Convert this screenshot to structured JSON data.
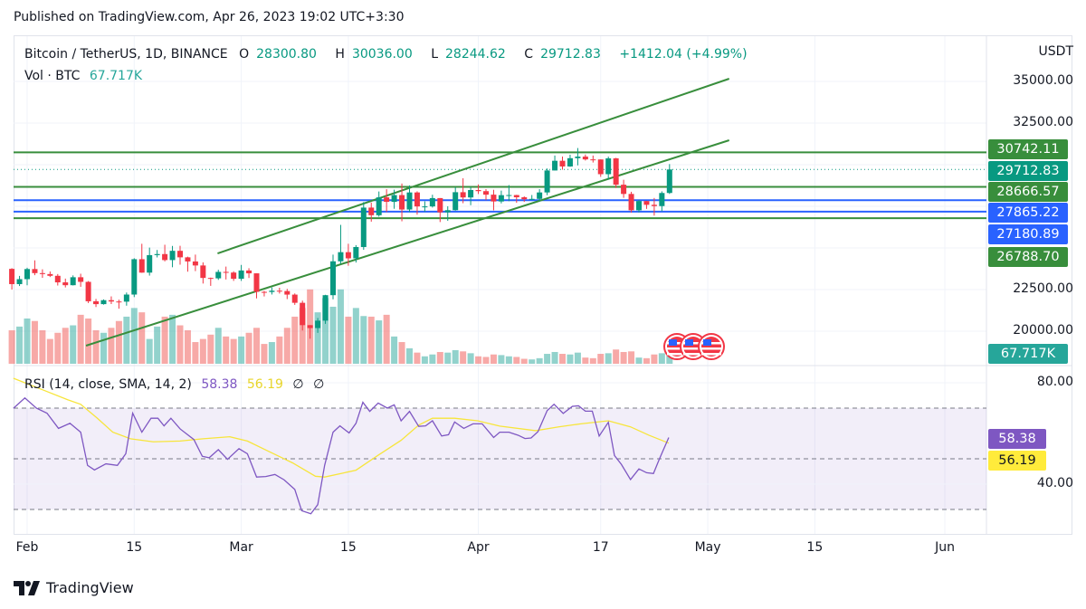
{
  "published": "Published on TradingView.com, Apr 26, 2023 19:02 UTC+3:30",
  "legend": {
    "symbol": "Bitcoin / TetherUS, 1D, BINANCE",
    "o_label": "O",
    "o": "28300.80",
    "h_label": "H",
    "h": "30036.00",
    "l_label": "L",
    "l": "28244.62",
    "c_label": "C",
    "c": "29712.83",
    "change": "+1412.04 (+4.99%)",
    "vol_label": "Vol · BTC",
    "vol": "67.717K"
  },
  "rsi_legend": {
    "label": "RSI (14, close, SMA, 14, 2)",
    "rsi": "58.38",
    "sma": "56.19",
    "x1": "∅",
    "x2": "∅"
  },
  "price_axis": {
    "currency": "USDT",
    "ticks": [
      "35000.00",
      "32500.00",
      "22500.00",
      "20000.00"
    ],
    "tick_values": [
      35000,
      32500,
      22500,
      20000
    ]
  },
  "rsi_axis": {
    "ticks": [
      "80.00",
      "40.00"
    ],
    "tick_values": [
      80,
      40
    ]
  },
  "price_tags": [
    {
      "text": "30742.11",
      "value": 30742.11,
      "color": "#388e3c",
      "kind": "hline"
    },
    {
      "text": "29712.83",
      "value": 29712.83,
      "color": "#089981",
      "kind": "last"
    },
    {
      "text": "28666.57",
      "value": 28666.57,
      "color": "#388e3c",
      "kind": "hline"
    },
    {
      "text": "27865.22",
      "value": 27865.22,
      "color": "#2962ff",
      "kind": "hline"
    },
    {
      "text": "27180.89",
      "value": 27180.89,
      "color": "#2962ff",
      "kind": "hline"
    },
    {
      "text": "26788.70",
      "value": 26788.7,
      "color": "#388e3c",
      "kind": "hline"
    }
  ],
  "vol_tag": {
    "text": "67.717K",
    "color": "#26a69a"
  },
  "rsi_tags": [
    {
      "text": "58.38",
      "color": "#7e57c2",
      "fg": "#fff"
    },
    {
      "text": "56.19",
      "color": "#ffeb3b",
      "fg": "#131722"
    }
  ],
  "time_axis": [
    {
      "label": "Feb",
      "day": 0
    },
    {
      "label": "15",
      "day": 14
    },
    {
      "label": "Mar",
      "day": 28
    },
    {
      "label": "15",
      "day": 42
    },
    {
      "label": "Apr",
      "day": 59
    },
    {
      "label": "17",
      "day": 75
    },
    {
      "label": "May",
      "day": 89
    },
    {
      "label": "15",
      "day": 103
    },
    {
      "label": "Jun",
      "day": 120
    }
  ],
  "logo": "TradingView",
  "colors": {
    "up": "#089981",
    "down": "#f23645",
    "trend": "#388e3c",
    "rsi": "#7e57c2",
    "sma": "#f7e53b"
  },
  "chart_data": {
    "type": "candlestick",
    "first_day": -2,
    "candles_ohlcv": [
      [
        23743,
        23785,
        22500,
        22827,
        270
      ],
      [
        22827,
        23320,
        22714,
        23125,
        300
      ],
      [
        23125,
        23812,
        22760,
        23732,
        365
      ],
      [
        23732,
        24255,
        23363,
        23488,
        345
      ],
      [
        23488,
        23715,
        23204,
        23431,
        270
      ],
      [
        23431,
        23587,
        23253,
        23326,
        200
      ],
      [
        23326,
        23433,
        22743,
        22933,
        250
      ],
      [
        22933,
        23158,
        22628,
        22762,
        290
      ],
      [
        22762,
        23350,
        22745,
        23240,
        310
      ],
      [
        23240,
        23452,
        22665,
        22963,
        395
      ],
      [
        22963,
        23011,
        21688,
        21797,
        365
      ],
      [
        21797,
        21938,
        21451,
        21625,
        270
      ],
      [
        21625,
        21906,
        21599,
        21862,
        250
      ],
      [
        21862,
        22090,
        21630,
        21783,
        290
      ],
      [
        21783,
        21894,
        21352,
        21773,
        345
      ],
      [
        21773,
        22322,
        21532,
        22200,
        380
      ],
      [
        22200,
        24380,
        22047,
        24324,
        450
      ],
      [
        24324,
        25250,
        23505,
        23517,
        415
      ],
      [
        23517,
        25021,
        23339,
        24569,
        200
      ],
      [
        24569,
        24877,
        24430,
        24631,
        300
      ],
      [
        24631,
        25192,
        24192,
        24271,
        380
      ],
      [
        24271,
        25121,
        23840,
        24827,
        395
      ],
      [
        24827,
        25126,
        23997,
        24436,
        310
      ],
      [
        24436,
        24476,
        23574,
        24188,
        270
      ],
      [
        24188,
        24600,
        23608,
        23947,
        175
      ],
      [
        23947,
        24133,
        22862,
        23198,
        200
      ],
      [
        23198,
        23219,
        22722,
        23175,
        235
      ],
      [
        23175,
        23689,
        23081,
        23561,
        290
      ],
      [
        23561,
        23880,
        23106,
        23522,
        220
      ],
      [
        23522,
        23600,
        23020,
        23147,
        200
      ],
      [
        23147,
        23980,
        23020,
        23646,
        220
      ],
      [
        23646,
        23783,
        23195,
        23475,
        250
      ],
      [
        23475,
        23479,
        21971,
        22362,
        290
      ],
      [
        22362,
        22420,
        22086,
        22354,
        160
      ],
      [
        22354,
        22624,
        22203,
        22430,
        175
      ],
      [
        22430,
        22609,
        22260,
        22410,
        220
      ],
      [
        22410,
        22541,
        21927,
        22197,
        290
      ],
      [
        22197,
        22268,
        21580,
        21705,
        380
      ],
      [
        21705,
        21834,
        20042,
        20363,
        450
      ],
      [
        20363,
        20367,
        19549,
        20187,
        600
      ],
      [
        20187,
        20792,
        19900,
        20633,
        415
      ],
      [
        20633,
        22185,
        20440,
        22163,
        530
      ],
      [
        22163,
        24600,
        21918,
        24197,
        460
      ],
      [
        24197,
        26386,
        24044,
        24746,
        600
      ],
      [
        24746,
        25250,
        23930,
        24375,
        380
      ],
      [
        24375,
        25169,
        24123,
        25055,
        450
      ],
      [
        25055,
        27756,
        24890,
        27423,
        385
      ],
      [
        27423,
        27724,
        26578,
        26965,
        380
      ],
      [
        26965,
        28390,
        26880,
        28038,
        350
      ],
      [
        28038,
        28528,
        27157,
        27767,
        395
      ],
      [
        27767,
        28500,
        27352,
        28175,
        220
      ],
      [
        28175,
        28868,
        26601,
        27307,
        175
      ],
      [
        27307,
        28754,
        27155,
        28333,
        125
      ],
      [
        28333,
        28400,
        27000,
        27493,
        90
      ],
      [
        27493,
        27797,
        27174,
        27494,
        60
      ],
      [
        27494,
        28194,
        27426,
        27994,
        75
      ],
      [
        27994,
        27994,
        26555,
        27139,
        95
      ],
      [
        27139,
        27500,
        26631,
        27268,
        90
      ],
      [
        27268,
        28650,
        27240,
        28348,
        110
      ],
      [
        28348,
        29184,
        27686,
        28033,
        100
      ],
      [
        28033,
        28660,
        27566,
        28478,
        85
      ],
      [
        28478,
        28813,
        28240,
        28411,
        60
      ],
      [
        28411,
        28535,
        27867,
        28200,
        55
      ],
      [
        28200,
        28494,
        27260,
        27790,
        75
      ],
      [
        27790,
        28444,
        27675,
        28170,
        70
      ],
      [
        28170,
        28775,
        27806,
        28176,
        60
      ],
      [
        28176,
        28190,
        27711,
        28043,
        55
      ],
      [
        28043,
        28100,
        27766,
        27925,
        40
      ],
      [
        27925,
        28179,
        27883,
        27947,
        35
      ],
      [
        27947,
        28530,
        27800,
        28333,
        45
      ],
      [
        28333,
        29770,
        28170,
        29653,
        80
      ],
      [
        29653,
        30550,
        29653,
        30235,
        95
      ],
      [
        30235,
        30487,
        29700,
        29893,
        80
      ],
      [
        29893,
        30600,
        29872,
        30390,
        75
      ],
      [
        30390,
        31000,
        29960,
        30485,
        90
      ],
      [
        30485,
        30610,
        30250,
        30318,
        50
      ],
      [
        30318,
        30549,
        30130,
        30315,
        45
      ],
      [
        30315,
        30320,
        29270,
        29430,
        80
      ],
      [
        29430,
        30485,
        29100,
        30380,
        85
      ],
      [
        30380,
        30412,
        28600,
        28797,
        115
      ],
      [
        28797,
        29095,
        28010,
        28243,
        95
      ],
      [
        28243,
        28374,
        27125,
        27262,
        100
      ],
      [
        27262,
        27888,
        27136,
        27816,
        50
      ],
      [
        27816,
        27820,
        27345,
        27591,
        45
      ],
      [
        27591,
        28000,
        26942,
        27514,
        75
      ],
      [
        27514,
        28400,
        27200,
        28300,
        85
      ],
      [
        28300.8,
        30036,
        28244.62,
        29712.83,
        67.717
      ]
    ],
    "trendlines": [
      {
        "from": [
          24.9,
          24673
        ],
        "to": [
          91.8,
          35163
        ]
      },
      {
        "from": [
          7.7,
          19130
        ],
        "to": [
          91.8,
          31467
        ]
      }
    ],
    "rsi_levels": [
      70,
      50,
      30
    ],
    "rsi": [
      [
        -1.8,
        69.9
      ],
      [
        -0.3,
        74
      ],
      [
        1.2,
        70
      ],
      [
        2.6,
        68
      ],
      [
        4.1,
        62
      ],
      [
        5.6,
        64
      ],
      [
        7.0,
        60.5
      ],
      [
        7.9,
        47.4
      ],
      [
        8.8,
        45.6
      ],
      [
        10.3,
        48
      ],
      [
        11.8,
        47.4
      ],
      [
        12.9,
        52
      ],
      [
        13.8,
        68
      ],
      [
        15.0,
        60.5
      ],
      [
        16.2,
        66
      ],
      [
        17.1,
        66
      ],
      [
        17.9,
        63
      ],
      [
        18.8,
        66
      ],
      [
        20.0,
        61.8
      ],
      [
        21.8,
        57.6
      ],
      [
        22.9,
        51
      ],
      [
        23.8,
        50.4
      ],
      [
        25.0,
        53.6
      ],
      [
        26.2,
        49.8
      ],
      [
        27.7,
        54
      ],
      [
        28.8,
        52
      ],
      [
        30.0,
        42.8
      ],
      [
        31.2,
        43
      ],
      [
        32.4,
        43.8
      ],
      [
        33.6,
        41.7
      ],
      [
        35.0,
        37.9
      ],
      [
        35.9,
        29.5
      ],
      [
        37.1,
        28.3
      ],
      [
        38.0,
        31.9
      ],
      [
        38.9,
        47.4
      ],
      [
        40.0,
        60.5
      ],
      [
        40.9,
        63
      ],
      [
        42.1,
        60.2
      ],
      [
        43.0,
        64
      ],
      [
        43.9,
        72.3
      ],
      [
        44.8,
        68.7
      ],
      [
        45.9,
        72
      ],
      [
        47.1,
        70
      ],
      [
        48.0,
        71.3
      ],
      [
        48.9,
        65
      ],
      [
        50.0,
        68.7
      ],
      [
        51.2,
        62.8
      ],
      [
        52.1,
        63
      ],
      [
        53.0,
        65
      ],
      [
        54.2,
        59
      ],
      [
        55.1,
        59.5
      ],
      [
        55.9,
        64.5
      ],
      [
        57.1,
        62
      ],
      [
        58.3,
        63.8
      ],
      [
        59.5,
        63.8
      ],
      [
        61.0,
        58.4
      ],
      [
        61.8,
        60.5
      ],
      [
        63.0,
        60.5
      ],
      [
        64.2,
        59.3
      ],
      [
        65.1,
        58
      ],
      [
        65.9,
        58.2
      ],
      [
        66.8,
        60.7
      ],
      [
        68.0,
        69
      ],
      [
        68.9,
        71.5
      ],
      [
        70.1,
        67.9
      ],
      [
        71.3,
        70.7
      ],
      [
        72.1,
        70.9
      ],
      [
        73.0,
        68.8
      ],
      [
        73.9,
        68.8
      ],
      [
        74.8,
        59
      ],
      [
        76.0,
        64.4
      ],
      [
        76.8,
        51.3
      ],
      [
        77.7,
        47.8
      ],
      [
        78.9,
        41.8
      ],
      [
        80.0,
        46
      ],
      [
        81.0,
        44.5
      ],
      [
        81.9,
        44.2
      ],
      [
        82.7,
        50.1
      ],
      [
        83.9,
        58.38
      ]
    ],
    "rsi_sma": [
      [
        -1.8,
        81.8
      ],
      [
        2.3,
        76.9
      ],
      [
        5.3,
        73.3
      ],
      [
        7.0,
        71.5
      ],
      [
        9.1,
        66.2
      ],
      [
        11.2,
        60.5
      ],
      [
        13.5,
        57.9
      ],
      [
        16.5,
        56.7
      ],
      [
        20.0,
        57
      ],
      [
        23.0,
        57.9
      ],
      [
        26.5,
        58.7
      ],
      [
        28.8,
        57
      ],
      [
        31.8,
        52.6
      ],
      [
        34.7,
        48.4
      ],
      [
        37.7,
        43.1
      ],
      [
        38.9,
        42.8
      ],
      [
        41.2,
        44.3
      ],
      [
        43.0,
        45.5
      ],
      [
        45.9,
        51.4
      ],
      [
        48.9,
        57.3
      ],
      [
        51.2,
        63.3
      ],
      [
        53.0,
        66
      ],
      [
        55.9,
        66
      ],
      [
        58.9,
        65
      ],
      [
        61.8,
        62.9
      ],
      [
        66.5,
        61.1
      ],
      [
        69.5,
        62.6
      ],
      [
        72.4,
        63.8
      ],
      [
        76.0,
        65
      ],
      [
        78.9,
        62.6
      ],
      [
        81.3,
        59.3
      ],
      [
        83.9,
        56.19
      ]
    ]
  }
}
